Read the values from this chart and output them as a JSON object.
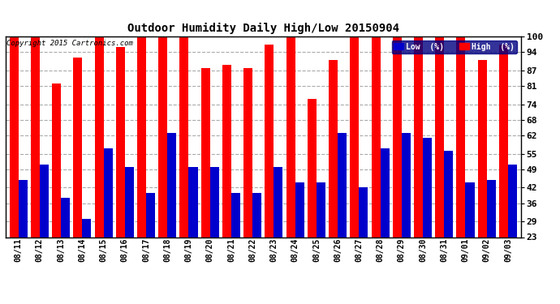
{
  "title": "Outdoor Humidity Daily High/Low 20150904",
  "copyright": "Copyright 2015 Cartronics.com",
  "dates": [
    "08/11",
    "08/12",
    "08/13",
    "08/14",
    "08/15",
    "08/16",
    "08/17",
    "08/18",
    "08/19",
    "08/20",
    "08/21",
    "08/22",
    "08/23",
    "08/24",
    "08/25",
    "08/26",
    "08/27",
    "08/28",
    "08/29",
    "08/30",
    "08/31",
    "09/01",
    "09/02",
    "09/03"
  ],
  "high": [
    100,
    100,
    82,
    92,
    100,
    96,
    100,
    100,
    100,
    88,
    89,
    88,
    97,
    100,
    76,
    91,
    100,
    100,
    100,
    100,
    100,
    100,
    91,
    97
  ],
  "low": [
    45,
    51,
    38,
    30,
    57,
    50,
    40,
    63,
    50,
    50,
    40,
    40,
    50,
    44,
    44,
    63,
    42,
    57,
    63,
    61,
    56,
    44,
    45,
    51
  ],
  "high_color": "#ff0000",
  "low_color": "#0000cc",
  "bg_color": "#ffffff",
  "grid_color": "#aaaaaa",
  "yticks": [
    23,
    29,
    36,
    42,
    49,
    55,
    62,
    68,
    74,
    81,
    87,
    94,
    100
  ],
  "ymin": 23,
  "ymax": 100,
  "legend_low_label": "Low  (%)",
  "legend_high_label": "High  (%)",
  "bar_width": 0.42,
  "figwidth": 6.9,
  "figheight": 3.75,
  "dpi": 100
}
